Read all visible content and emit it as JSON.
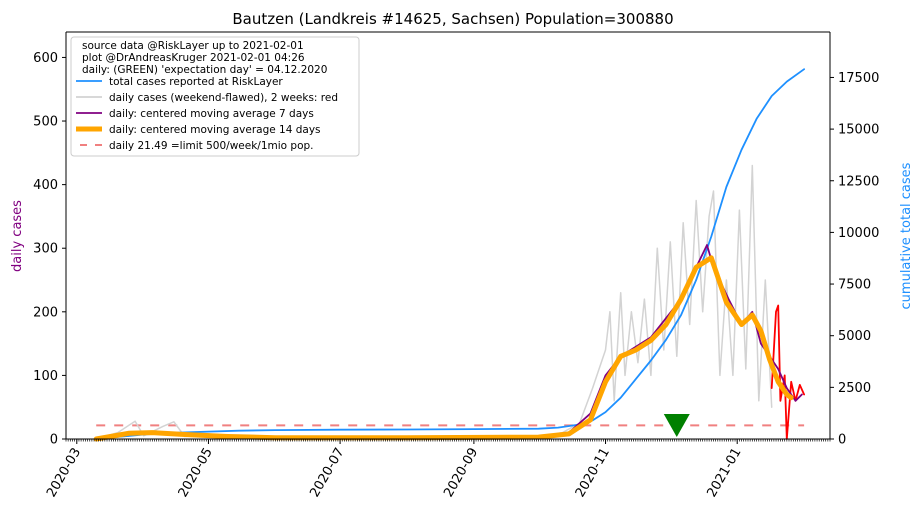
{
  "chart_data": {
    "type": "line",
    "title": "Bautzen (Landkreis #14625, Sachsen) Population=300880",
    "ylabel_left": "daily cases",
    "ylabel_right": "cumulative total cases",
    "ylabel_left_color": "#800080",
    "ylabel_right_color": "#1e90ff",
    "ylim_left": [
      0,
      640
    ],
    "ylim_right": [
      0,
      19700
    ],
    "yticks_left": [
      0,
      100,
      200,
      300,
      400,
      500,
      600
    ],
    "yticks_right": [
      0,
      2500,
      5000,
      7500,
      10000,
      12500,
      15000,
      17500
    ],
    "x_start": "2020-02-25",
    "x_end": "2021-02-13",
    "xticks": [
      "2020-03",
      "2020-05",
      "2020-07",
      "2020-09",
      "2020-11",
      "2021-01"
    ],
    "legend_position": "upper-left",
    "legend_header": [
      "source data @RiskLayer up to 2021-02-01",
      "plot @DrAndreasKruger 2021-02-01 04:26",
      "daily: (GREEN) 'expectation day' = 04.12.2020"
    ],
    "legend": [
      {
        "label": "total cases reported at RiskLayer",
        "color": "#1e90ff",
        "style": "line"
      },
      {
        "label": "daily cases (weekend-flawed), 2 weeks: red",
        "color": "#d3d3d3",
        "style": "line"
      },
      {
        "label": "daily: centered moving average 7 days",
        "color": "#800080",
        "style": "line"
      },
      {
        "label": "daily: centered moving average 14 days",
        "color": "#ffa500",
        "style": "thick"
      },
      {
        "label": "daily 21.49 =limit 500/week/1mio pop.",
        "color": "#f08080",
        "style": "dashed"
      }
    ],
    "limit_line_value": 21.49,
    "expectation_day": "2020-12-04",
    "series": [
      {
        "name": "total cases reported at RiskLayer",
        "axis": "right",
        "color": "#1e90ff",
        "points": [
          [
            "2020-03-10",
            0
          ],
          [
            "2020-03-20",
            100
          ],
          [
            "2020-04-01",
            220
          ],
          [
            "2020-04-15",
            300
          ],
          [
            "2020-05-01",
            360
          ],
          [
            "2020-05-15",
            400
          ],
          [
            "2020-06-01",
            430
          ],
          [
            "2020-07-01",
            450
          ],
          [
            "2020-08-01",
            460
          ],
          [
            "2020-09-01",
            480
          ],
          [
            "2020-10-01",
            500
          ],
          [
            "2020-10-10",
            550
          ],
          [
            "2020-10-20",
            700
          ],
          [
            "2020-10-26",
            900
          ],
          [
            "2020-11-01",
            1300
          ],
          [
            "2020-11-08",
            2000
          ],
          [
            "2020-11-15",
            2900
          ],
          [
            "2020-11-22",
            3800
          ],
          [
            "2020-11-29",
            4800
          ],
          [
            "2020-12-06",
            6000
          ],
          [
            "2020-12-13",
            7700
          ],
          [
            "2020-12-20",
            9800
          ],
          [
            "2020-12-27",
            12200
          ],
          [
            "2021-01-03",
            14000
          ],
          [
            "2021-01-10",
            15500
          ],
          [
            "2021-01-17",
            16600
          ],
          [
            "2021-01-24",
            17300
          ],
          [
            "2021-02-01",
            17900
          ]
        ]
      },
      {
        "name": "daily cases (weekend-flawed), 2 weeks: red",
        "axis": "left",
        "color": "#d3d3d3",
        "points": [
          [
            "2020-03-10",
            0
          ],
          [
            "2020-03-20",
            10
          ],
          [
            "2020-03-28",
            28
          ],
          [
            "2020-04-01",
            5
          ],
          [
            "2020-04-10",
            20
          ],
          [
            "2020-04-15",
            27
          ],
          [
            "2020-04-20",
            4
          ],
          [
            "2020-05-01",
            8
          ],
          [
            "2020-05-15",
            3
          ],
          [
            "2020-06-01",
            2
          ],
          [
            "2020-07-01",
            2
          ],
          [
            "2020-08-01",
            2
          ],
          [
            "2020-09-01",
            2
          ],
          [
            "2020-10-01",
            3
          ],
          [
            "2020-10-12",
            10
          ],
          [
            "2020-10-20",
            25
          ],
          [
            "2020-10-26",
            80
          ],
          [
            "2020-11-01",
            140
          ],
          [
            "2020-11-03",
            200
          ],
          [
            "2020-11-05",
            60
          ],
          [
            "2020-11-08",
            230
          ],
          [
            "2020-11-10",
            100
          ],
          [
            "2020-11-13",
            200
          ],
          [
            "2020-11-16",
            120
          ],
          [
            "2020-11-19",
            220
          ],
          [
            "2020-11-22",
            100
          ],
          [
            "2020-11-25",
            300
          ],
          [
            "2020-11-28",
            140
          ],
          [
            "2020-12-01",
            310
          ],
          [
            "2020-12-04",
            130
          ],
          [
            "2020-12-07",
            340
          ],
          [
            "2020-12-10",
            180
          ],
          [
            "2020-12-13",
            375
          ],
          [
            "2020-12-16",
            200
          ],
          [
            "2020-12-19",
            350
          ],
          [
            "2020-12-21",
            390
          ],
          [
            "2020-12-24",
            100
          ],
          [
            "2020-12-27",
            250
          ],
          [
            "2020-12-30",
            100
          ],
          [
            "2021-01-02",
            360
          ],
          [
            "2021-01-05",
            110
          ],
          [
            "2021-01-08",
            430
          ],
          [
            "2021-01-11",
            60
          ],
          [
            "2021-01-14",
            250
          ],
          [
            "2021-01-17",
            50
          ]
        ]
      },
      {
        "name": "daily cases, last 2 weeks",
        "axis": "left",
        "color": "#ff0000",
        "points": [
          [
            "2021-01-17",
            80
          ],
          [
            "2021-01-19",
            200
          ],
          [
            "2021-01-20",
            210
          ],
          [
            "2021-01-21",
            60
          ],
          [
            "2021-01-23",
            100
          ],
          [
            "2021-01-24",
            0
          ],
          [
            "2021-01-26",
            90
          ],
          [
            "2021-01-28",
            60
          ],
          [
            "2021-01-30",
            85
          ],
          [
            "2021-02-01",
            70
          ]
        ]
      },
      {
        "name": "daily: centered moving average 7 days",
        "axis": "left",
        "color": "#800080",
        "points": [
          [
            "2020-03-10",
            0
          ],
          [
            "2020-03-25",
            10
          ],
          [
            "2020-04-05",
            11
          ],
          [
            "2020-04-20",
            8
          ],
          [
            "2020-05-10",
            4
          ],
          [
            "2020-06-01",
            2
          ],
          [
            "2020-08-01",
            2
          ],
          [
            "2020-10-01",
            3
          ],
          [
            "2020-10-15",
            10
          ],
          [
            "2020-10-25",
            40
          ],
          [
            "2020-11-01",
            100
          ],
          [
            "2020-11-08",
            130
          ],
          [
            "2020-11-15",
            145
          ],
          [
            "2020-11-22",
            160
          ],
          [
            "2020-11-29",
            190
          ],
          [
            "2020-12-06",
            220
          ],
          [
            "2020-12-13",
            270
          ],
          [
            "2020-12-18",
            305
          ],
          [
            "2020-12-21",
            270
          ],
          [
            "2020-12-28",
            220
          ],
          [
            "2021-01-03",
            180
          ],
          [
            "2021-01-08",
            200
          ],
          [
            "2021-01-12",
            150
          ],
          [
            "2021-01-16",
            130
          ],
          [
            "2021-01-20",
            110
          ],
          [
            "2021-01-24",
            80
          ],
          [
            "2021-01-28",
            60
          ],
          [
            "2021-01-31",
            70
          ]
        ]
      },
      {
        "name": "daily: centered moving average 14 days",
        "axis": "left",
        "color": "#ffa500",
        "points": [
          [
            "2020-03-10",
            0
          ],
          [
            "2020-03-25",
            9
          ],
          [
            "2020-04-05",
            10
          ],
          [
            "2020-04-20",
            7
          ],
          [
            "2020-05-10",
            4
          ],
          [
            "2020-06-01",
            2
          ],
          [
            "2020-08-01",
            2
          ],
          [
            "2020-10-01",
            3
          ],
          [
            "2020-10-15",
            8
          ],
          [
            "2020-10-25",
            30
          ],
          [
            "2020-11-01",
            90
          ],
          [
            "2020-11-08",
            130
          ],
          [
            "2020-11-15",
            140
          ],
          [
            "2020-11-22",
            155
          ],
          [
            "2020-11-29",
            180
          ],
          [
            "2020-12-06",
            220
          ],
          [
            "2020-12-13",
            270
          ],
          [
            "2020-12-20",
            285
          ],
          [
            "2020-12-27",
            215
          ],
          [
            "2021-01-03",
            180
          ],
          [
            "2021-01-08",
            195
          ],
          [
            "2021-01-12",
            170
          ],
          [
            "2021-01-16",
            125
          ],
          [
            "2021-01-20",
            90
          ],
          [
            "2021-01-24",
            70
          ],
          [
            "2021-01-26",
            65
          ]
        ]
      }
    ]
  }
}
